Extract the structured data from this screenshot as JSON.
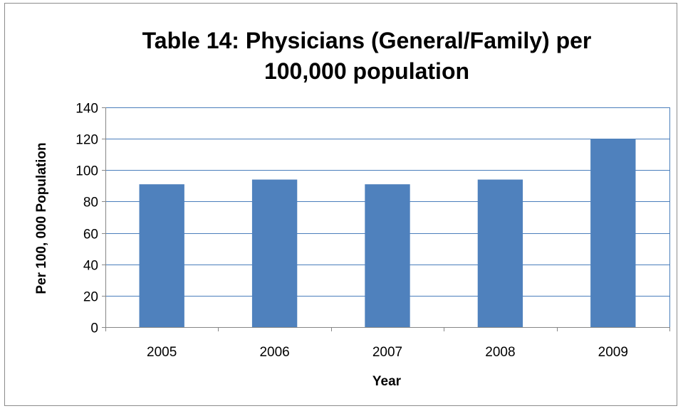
{
  "chart_data": {
    "type": "bar",
    "title_lines": [
      "Table 14:  Physicians (General/Family) per",
      "100,000 population"
    ],
    "xlabel": "Year",
    "ylabel": "Per 100, 000 Population",
    "categories": [
      "2005",
      "2006",
      "2007",
      "2008",
      "2009"
    ],
    "series": [
      {
        "values": [
          91,
          94,
          91,
          94,
          120
        ]
      }
    ],
    "ylim": [
      0,
      140
    ],
    "yticks": [
      0,
      20,
      40,
      60,
      80,
      100,
      120,
      140
    ],
    "grid": true,
    "legend": "none",
    "colors": {
      "bar": "#4f81bd",
      "grid": "#4a7ebb",
      "axis": "#868686",
      "plot_border": "#4a7ebb"
    }
  }
}
